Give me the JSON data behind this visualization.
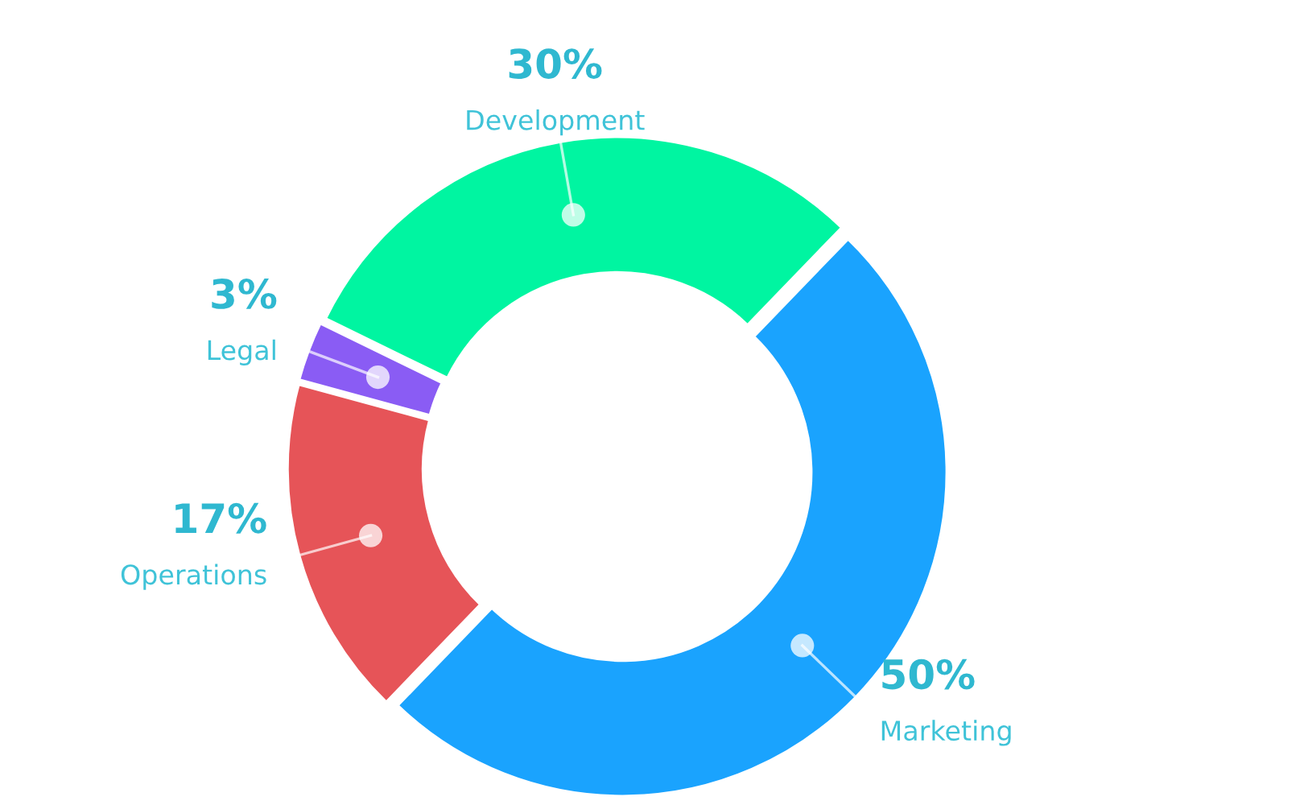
{
  "chart_data": {
    "type": "donut",
    "categories": [
      "Marketing",
      "Operations",
      "Legal",
      "Development"
    ],
    "values": [
      50,
      17,
      3,
      30
    ],
    "colors": [
      "#1aa3fe",
      "#e65458",
      "#8a5cf4",
      "#00f5a1"
    ],
    "value_labels": [
      "50%",
      "17%",
      "3%",
      "30%"
    ]
  }
}
